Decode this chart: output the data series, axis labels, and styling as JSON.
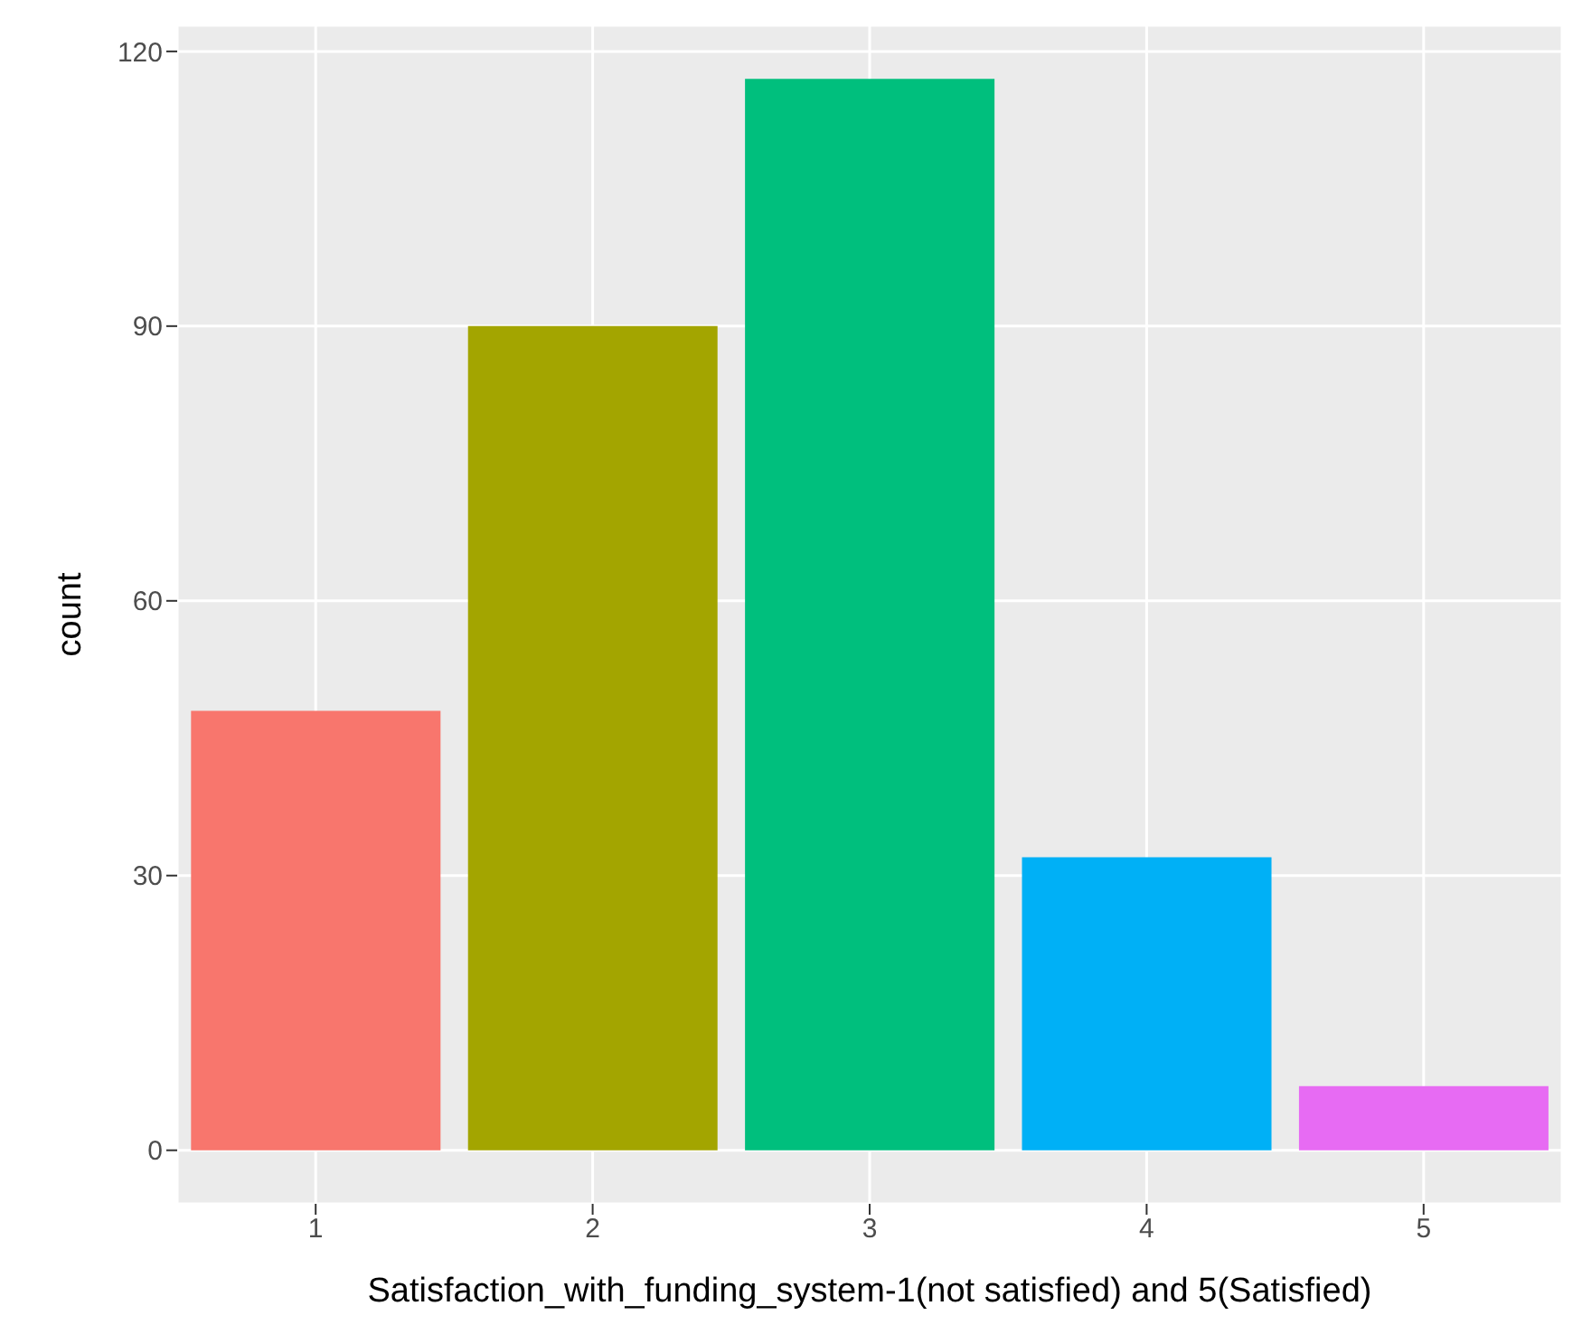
{
  "chart_data": {
    "type": "bar",
    "xlabel": "Satisfaction_with_funding_system-1(not satisfied) and 5(Satisfied)",
    "ylabel": "count",
    "categories": [
      "1",
      "2",
      "3",
      "4",
      "5"
    ],
    "values": [
      48,
      90,
      117,
      32,
      7
    ],
    "colors": [
      "#f8766d",
      "#a3a500",
      "#00bf7d",
      "#00b0f6",
      "#e76bf3"
    ],
    "ylim": [
      -5.85,
      122.85
    ],
    "yticks": [
      0,
      30,
      60,
      90,
      120
    ],
    "grid": true
  }
}
